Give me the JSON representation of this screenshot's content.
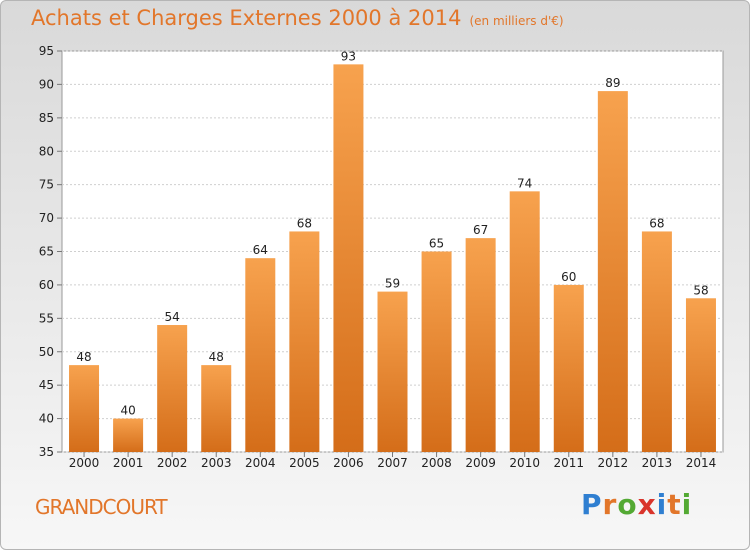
{
  "header": {
    "title": "Achats et Charges Externes 2000 à 2014",
    "subtitle": "(en milliers d'€)"
  },
  "footer": {
    "city": "GRANDCOURT",
    "brand": "Proxiti",
    "brand_letters": [
      {
        "ch": "P",
        "color": "#2f7fd1"
      },
      {
        "ch": "r",
        "color": "#e2762a"
      },
      {
        "ch": "o",
        "color": "#53a933"
      },
      {
        "ch": "x",
        "color": "#d9342b"
      },
      {
        "ch": "i",
        "color": "#2f7fd1"
      },
      {
        "ch": "t",
        "color": "#e2762a"
      },
      {
        "ch": "i",
        "color": "#53a933"
      }
    ]
  },
  "chart_data": {
    "type": "bar",
    "title": "Achats et Charges Externes 2000 à 2014",
    "subtitle": "(en milliers d'€)",
    "categories": [
      "2000",
      "2001",
      "2002",
      "2003",
      "2004",
      "2005",
      "2006",
      "2007",
      "2008",
      "2009",
      "2010",
      "2011",
      "2012",
      "2013",
      "2014"
    ],
    "values": [
      48,
      40,
      54,
      48,
      64,
      68,
      93,
      59,
      65,
      67,
      74,
      60,
      89,
      68,
      58
    ],
    "ylim": [
      35,
      95
    ],
    "yticks": [
      35,
      40,
      45,
      50,
      55,
      60,
      65,
      70,
      75,
      80,
      85,
      90,
      95
    ],
    "xlabel": "",
    "ylabel": "",
    "grid": true,
    "bar_color_top": "#f7a24e",
    "bar_color_bottom": "#d46d19"
  }
}
